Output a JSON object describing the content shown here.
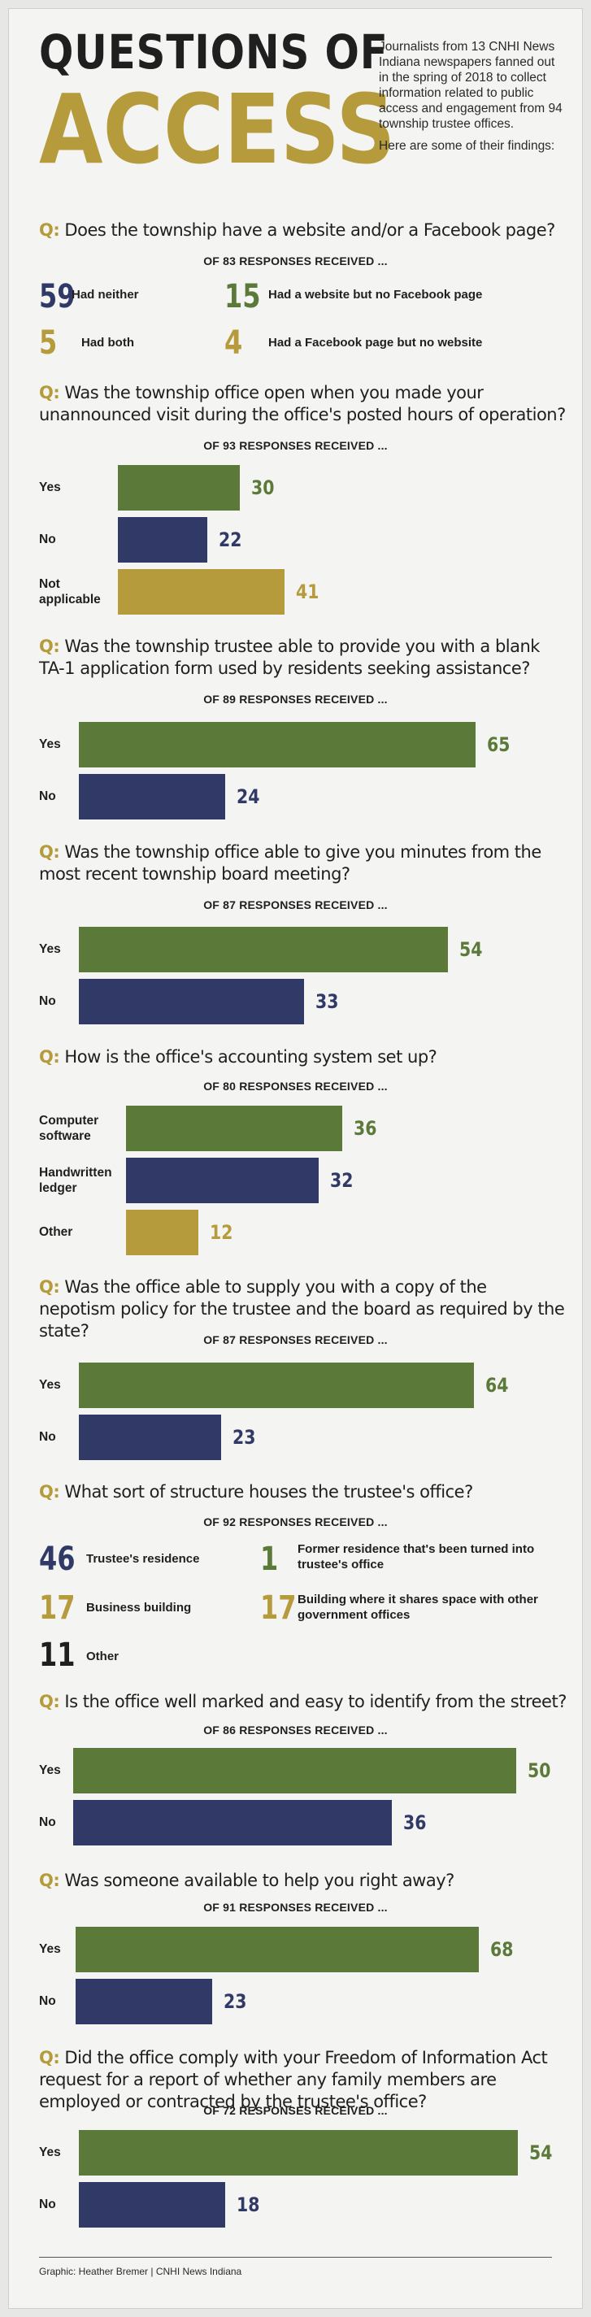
{
  "header": {
    "title_line1": "QUESTIONS OF",
    "title_line2": "ACCESS",
    "intro_p1": "Journalists from 13 CNHI News Indiana newspapers fanned out in the spring of 2018 to collect information related to public access and engagement from 94 township trustee offices.",
    "intro_p2": "Here are some of their findings:"
  },
  "colors": {
    "green": "#5b7a3a",
    "navy": "#313a66",
    "gold": "#b59b3b",
    "dark": "#1f1f1f"
  },
  "q_prefix": "Q:",
  "chart_data": [
    {
      "type": "table",
      "question": "Does the township have a website and/or a Facebook page?",
      "subtitle": "OF 83 RESPONSES RECEIVED ...",
      "items": [
        {
          "value": "59",
          "label": "Had neither",
          "color": "navy"
        },
        {
          "value": "15",
          "label": "Had a website but no Facebook page",
          "color": "green"
        },
        {
          "value": "5",
          "label": "Had both",
          "color": "gold"
        },
        {
          "value": "4",
          "label": "Had a Facebook page but no website",
          "color": "gold"
        }
      ]
    },
    {
      "type": "bar",
      "question": "Was the township office open when you made your unannounced visit during the office's posted hours of operation?",
      "subtitle": "OF 93 RESPONSES RECEIVED ...",
      "categories": [
        "Yes",
        "No",
        "Not applicable"
      ],
      "values": [
        30,
        22,
        41
      ],
      "colors": [
        "green",
        "navy",
        "gold"
      ]
    },
    {
      "type": "bar",
      "question": "Was the township trustee able to provide you with a blank TA-1 application form used by residents seeking assistance?",
      "subtitle": "OF 89 RESPONSES RECEIVED ...",
      "categories": [
        "Yes",
        "No"
      ],
      "values": [
        65,
        24
      ],
      "colors": [
        "green",
        "navy"
      ]
    },
    {
      "type": "bar",
      "question": "Was the township office able to give you minutes from the most recent township board meeting?",
      "subtitle": "OF 87 RESPONSES RECEIVED ...",
      "categories": [
        "Yes",
        "No"
      ],
      "values": [
        54,
        33
      ],
      "colors": [
        "green",
        "navy"
      ]
    },
    {
      "type": "bar",
      "question": "How is the office's accounting system set up?",
      "subtitle": "OF 80 RESPONSES RECEIVED ...",
      "categories": [
        "Computer software",
        "Handwritten ledger",
        "Other"
      ],
      "values": [
        36,
        32,
        12
      ],
      "colors": [
        "green",
        "navy",
        "gold"
      ]
    },
    {
      "type": "bar",
      "question": "Was the office able to supply you with a copy of the nepotism policy for the trustee and the board as required by the state?",
      "subtitle": "OF 87 RESPONSES RECEIVED ...",
      "categories": [
        "Yes",
        "No"
      ],
      "values": [
        64,
        23
      ],
      "colors": [
        "green",
        "navy"
      ]
    },
    {
      "type": "table",
      "question": "What sort of structure houses the trustee's office?",
      "subtitle": "OF 92 RESPONSES RECEIVED ...",
      "items": [
        {
          "value": "46",
          "label": "Trustee's residence",
          "color": "navy"
        },
        {
          "value": "1",
          "label": "Former residence that's been turned into trustee's office",
          "color": "green"
        },
        {
          "value": "17",
          "label": "Business building",
          "color": "gold"
        },
        {
          "value": "17",
          "label": "Building where it shares space with other government offices",
          "color": "gold"
        },
        {
          "value": "11",
          "label": "Other",
          "color": "dark"
        }
      ]
    },
    {
      "type": "bar",
      "question": "Is the office well marked and easy to identify from the street?",
      "subtitle": "OF 86 RESPONSES RECEIVED ...",
      "categories": [
        "Yes",
        "No"
      ],
      "values": [
        50,
        36
      ],
      "colors": [
        "green",
        "navy"
      ]
    },
    {
      "type": "bar",
      "question": "Was someone available to help you right away?",
      "subtitle": "OF 91 RESPONSES RECEIVED ...",
      "categories": [
        "Yes",
        "No"
      ],
      "values": [
        68,
        23
      ],
      "colors": [
        "green",
        "navy"
      ]
    },
    {
      "type": "bar",
      "question": "Did the office comply with your Freedom of Information Act request for a report of whether any family members are employed or contracted by the trustee's office?",
      "subtitle": "OF 72 RESPONSES RECEIVED ...",
      "categories": [
        "Yes",
        "No"
      ],
      "values": [
        54,
        18
      ],
      "colors": [
        "green",
        "navy"
      ]
    }
  ],
  "footer": {
    "credit": "Graphic: Heather Bremer | CNHI News Indiana"
  }
}
